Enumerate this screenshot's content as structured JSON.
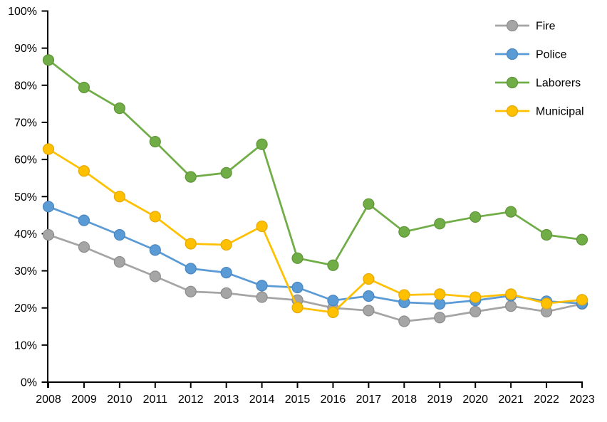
{
  "chart_data": {
    "type": "line",
    "title": "",
    "xlabel": "",
    "ylabel": "",
    "x": [
      2008,
      2009,
      2010,
      2011,
      2012,
      2013,
      2014,
      2015,
      2016,
      2017,
      2018,
      2019,
      2020,
      2021,
      2022,
      2023
    ],
    "series": [
      {
        "name": "Fire",
        "color": "#A5A5A5",
        "marker_edge": "#8C8C8C",
        "values": [
          39.7,
          36.4,
          32.4,
          28.5,
          24.4,
          24.0,
          22.9,
          22.1,
          20.0,
          19.3,
          16.4,
          17.4,
          19.0,
          20.5,
          19.0,
          21.1
        ]
      },
      {
        "name": "Police",
        "color": "#5B9BD5",
        "marker_edge": "#4A86C0",
        "values": [
          47.3,
          43.6,
          39.7,
          35.6,
          30.6,
          29.5,
          26.0,
          25.5,
          22.0,
          23.2,
          21.5,
          21.1,
          22.0,
          23.3,
          21.8,
          21.2
        ]
      },
      {
        "name": "Laborers",
        "color": "#70AD47",
        "marker_edge": "#5F9438",
        "values": [
          86.8,
          79.4,
          73.8,
          64.8,
          55.3,
          56.4,
          64.1,
          33.4,
          31.5,
          48.0,
          40.5,
          42.7,
          44.5,
          45.9,
          39.7,
          38.4
        ]
      },
      {
        "name": "Municipal",
        "color": "#FFC000",
        "marker_edge": "#E3A90A",
        "values": [
          62.8,
          56.9,
          50.0,
          44.6,
          37.3,
          37.0,
          42.0,
          20.1,
          18.8,
          27.8,
          23.5,
          23.7,
          22.9,
          23.7,
          21.2,
          22.2
        ]
      }
    ],
    "ylim": [
      0,
      100
    ],
    "y_tick_values": [
      0,
      10,
      20,
      30,
      40,
      50,
      60,
      70,
      80,
      90,
      100
    ],
    "y_tick_labels": [
      "0%",
      "10%",
      "20%",
      "30%",
      "40%",
      "50%",
      "60%",
      "70%",
      "80%",
      "90%",
      "100%"
    ],
    "grid": false,
    "legend_position": "top-right",
    "axis_color": "#000000",
    "background_color": "#FFFFFF"
  }
}
